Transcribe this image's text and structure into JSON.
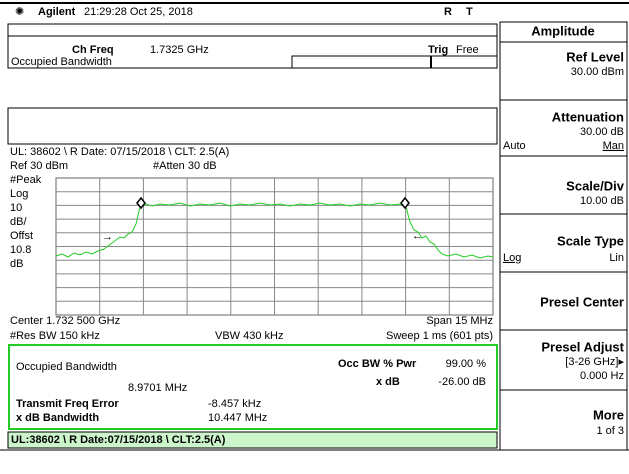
{
  "header": {
    "brand": "Agilent",
    "time": "21:29:28  Oct 25, 2018",
    "flag_r": "R",
    "flag_t": "T"
  },
  "status": {
    "ch_freq_label": "Ch Freq",
    "ch_freq": "1.7325 GHz",
    "trig_label": "Trig",
    "trig": "Free",
    "measurement": "Occupied Bandwidth"
  },
  "info_line": "UL: 38602 \\ R Date: 07/15/2018 \\ CLT: 2.5(A)",
  "graph": {
    "ref": "Ref 30 dBm",
    "atten": "#Atten 30 dB",
    "left_labels": [
      "#Peak",
      "Log",
      "10",
      "dB/",
      "Offst",
      "10.8",
      "dB"
    ],
    "center": "Center 1.732 500 GHz",
    "span": "Span 15 MHz",
    "res_bw": "#Res BW 150 kHz",
    "vbw": "VBW 430 kHz",
    "sweep": "Sweep 1 ms (601 pts)"
  },
  "results": {
    "title": "Occupied Bandwidth",
    "value": "8.9701 MHz",
    "occ_label": "Occ BW % Pwr",
    "occ_value": "99.00 %",
    "xdb_label": "x dB",
    "xdb_value": "-26.00 dB",
    "tfe_label": "Transmit Freq Error",
    "tfe_value": "-8.457 kHz",
    "xdbbw_label": "x dB Bandwidth",
    "xdbbw_value": "10.447 MHz"
  },
  "footer": "UL:38602 \\ R Date:07/15/2018 \\ CLT:2.5(A)",
  "softkeys": {
    "menu": "Amplitude",
    "keys": [
      {
        "label": "Ref Level",
        "value": "30.00 dBm"
      },
      {
        "label": "Attenuation",
        "value": "30.00 dB",
        "left": "Auto",
        "right": "Man"
      },
      {
        "label": "Scale/Div",
        "value": "10.00 dB"
      },
      {
        "label": "Scale Type",
        "left": "Log",
        "right": "Lin"
      },
      {
        "label": "Presel Center"
      },
      {
        "label": "Presel Adjust",
        "range": "[3-26 GHz]▸",
        "value": "0.000  Hz"
      },
      {
        "label": "More",
        "value": "1 of 3"
      }
    ]
  }
}
